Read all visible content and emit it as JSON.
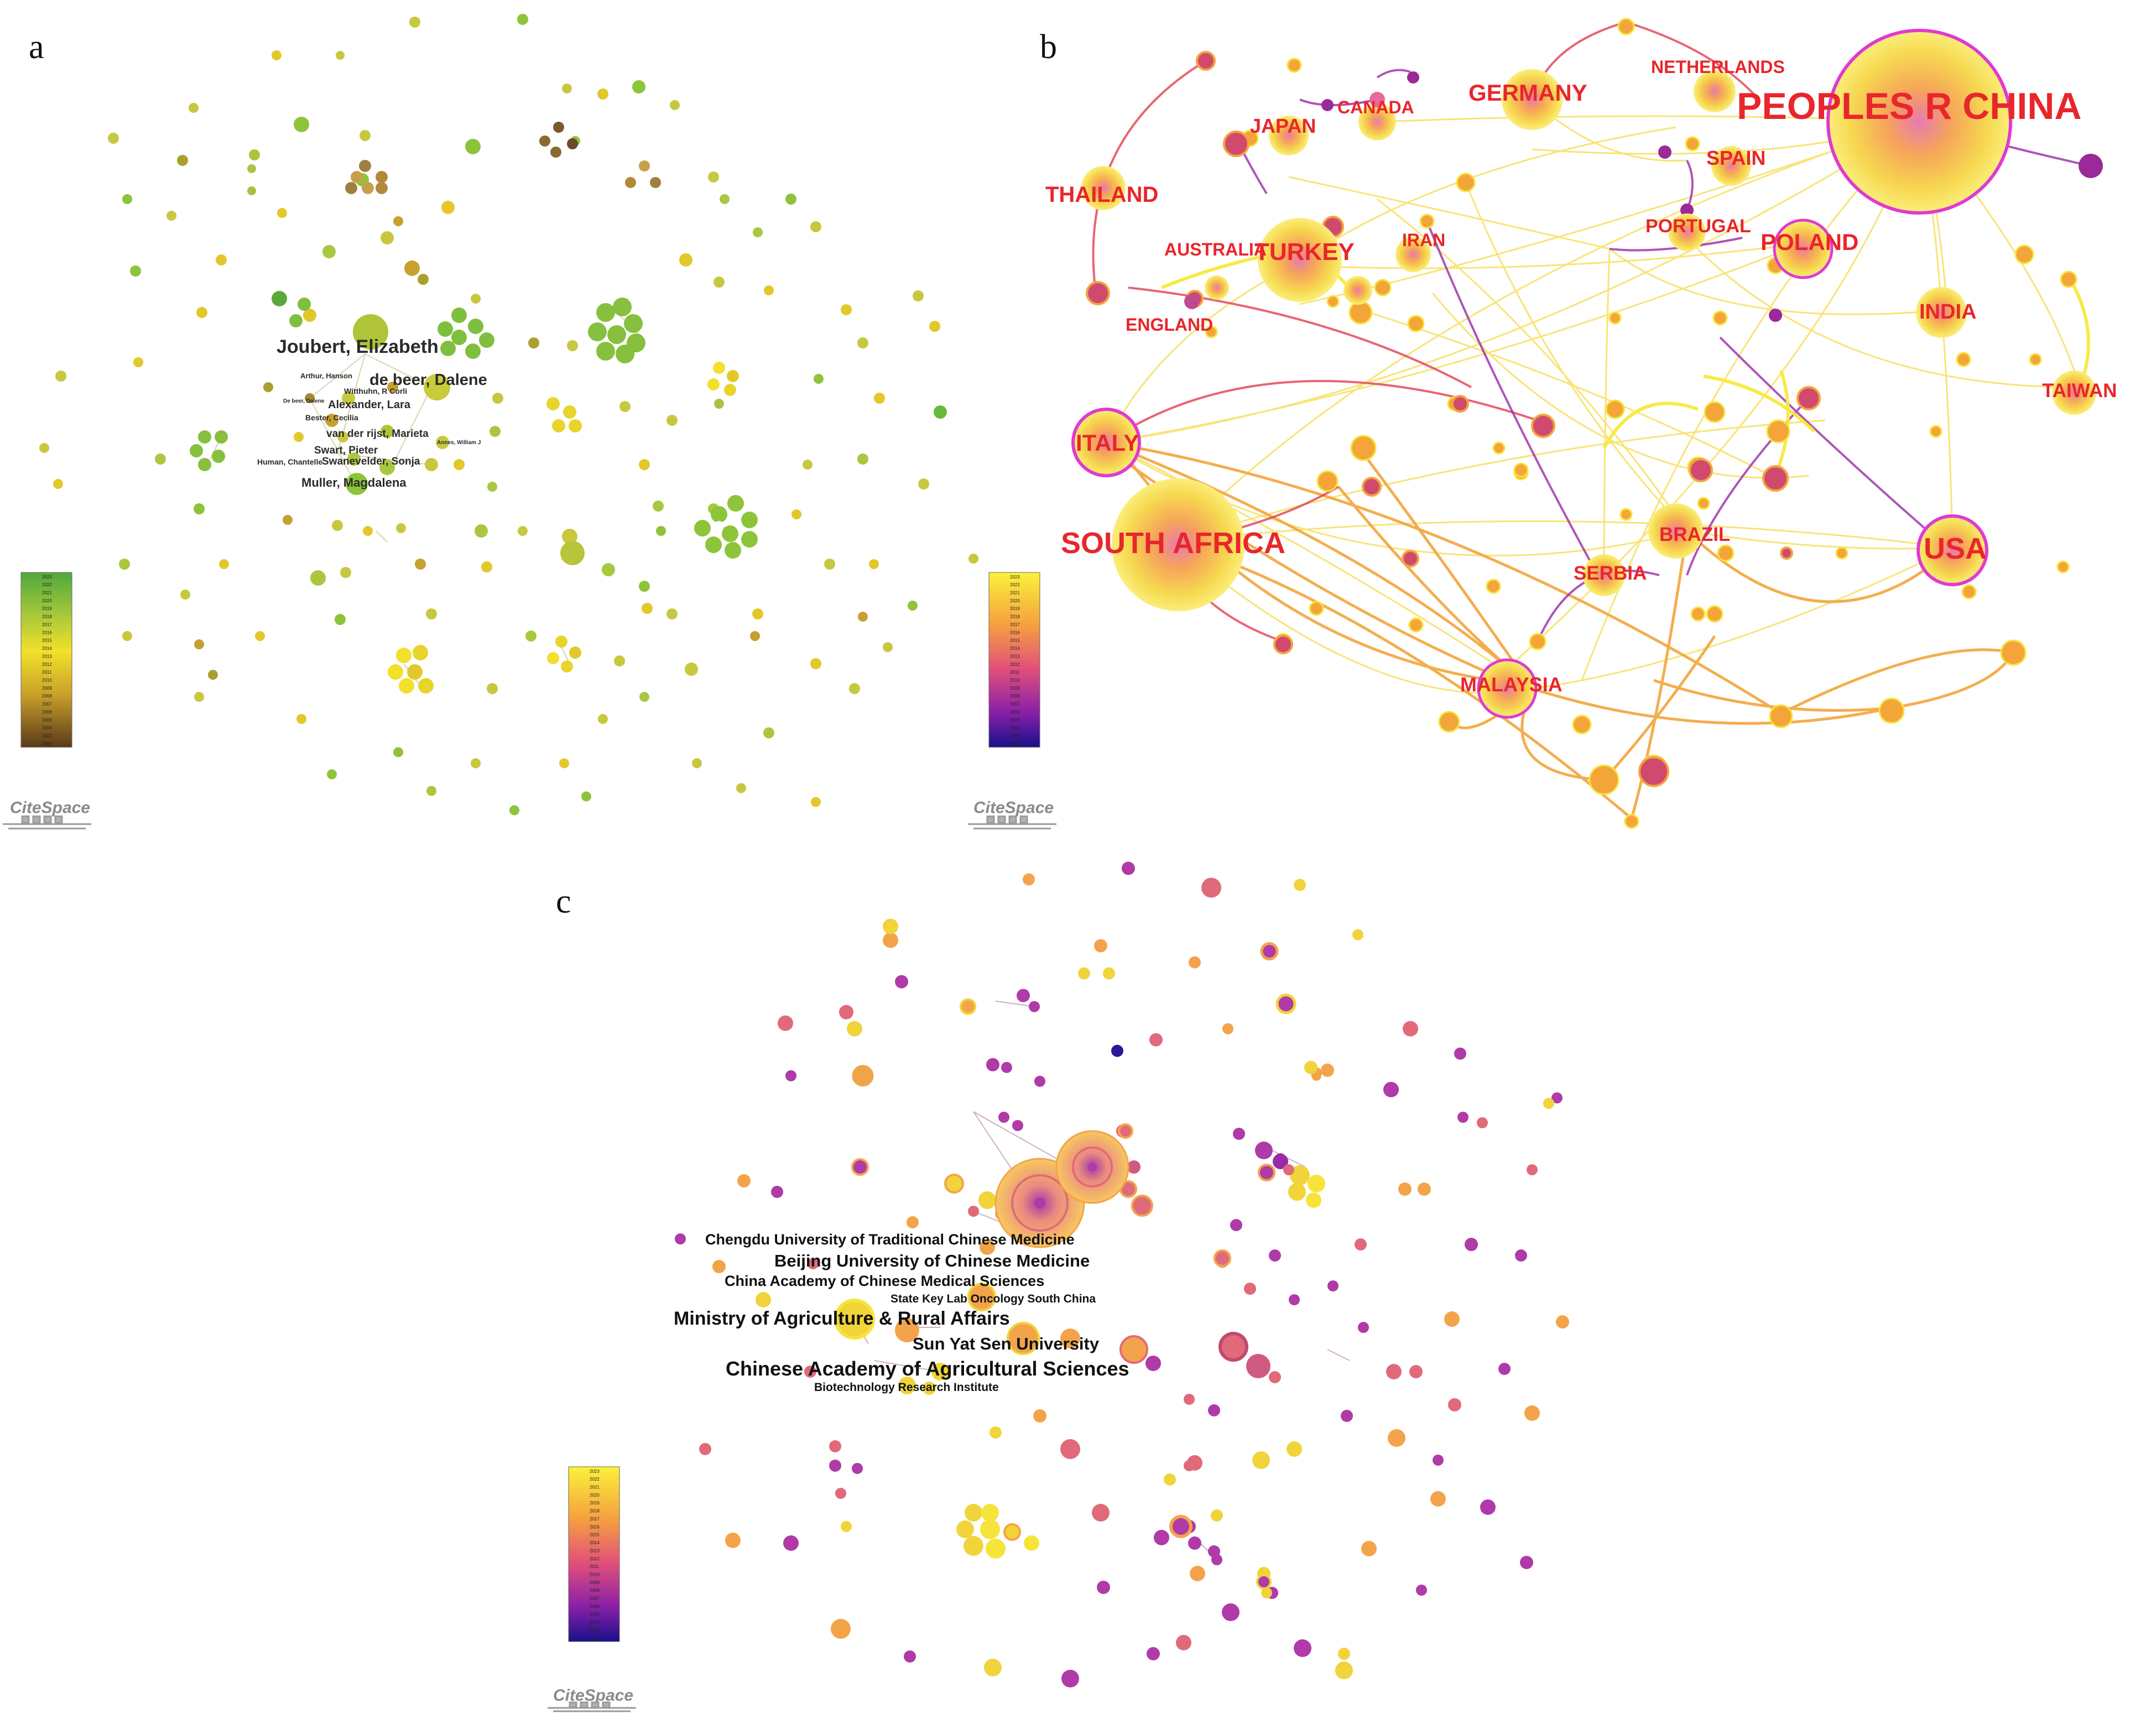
{
  "panels": [
    {
      "id": "a",
      "letter": "a"
    },
    {
      "id": "b",
      "letter": "b"
    },
    {
      "id": "c",
      "letter": "c"
    }
  ],
  "brand_text": "CiteSpace",
  "panel_a": {
    "legend_years": [
      "2023",
      "2022",
      "2021",
      "2020",
      "2019",
      "2018",
      "2017",
      "2016",
      "2015",
      "2014",
      "2013",
      "2012",
      "2011",
      "2010",
      "2009",
      "2008",
      "2007",
      "2006",
      "2005",
      "2004",
      "2003",
      "2002"
    ],
    "labels_large": [
      "Joubert, Elizabeth",
      "de beer, Dalene"
    ],
    "labels_medium": [
      "Alexander, Lara",
      "van der rijst, Marieta",
      "Swart, Pieter",
      "Swanevelder, Sonja",
      "Muller, Magdalena"
    ],
    "labels_small": [
      "Arthur, Hanson",
      "Witthuhn, R Corli",
      "De beer, Dalene",
      "Bester, Cecilia",
      "Human, Chantelle",
      "Annes, William J"
    ],
    "colors": {
      "green": "#7fbf3f",
      "olive": "#b7c43a",
      "yellow": "#f2e82a",
      "brown": "#8a6a2a",
      "tan": "#c8a84a"
    }
  },
  "panel_b": {
    "legend_years": [
      "2023",
      "2022",
      "2021",
      "2020",
      "2019",
      "2018",
      "2017",
      "2016",
      "2015",
      "2014",
      "2013",
      "2012",
      "2011",
      "2010",
      "2009",
      "2008",
      "2007",
      "2006",
      "2005",
      "2004",
      "2003",
      "2002"
    ],
    "countries": {
      "china": "PEOPLES R CHINA",
      "south_africa": "SOUTH AFRICA",
      "usa": "USA",
      "italy": "ITALY",
      "turkey": "TURKEY",
      "poland": "POLAND",
      "germany": "GERMANY",
      "india": "INDIA",
      "taiwan": "TAIWAN",
      "malaysia": "MALAYSIA",
      "brazil": "BRAZIL",
      "serbia": "SERBIA",
      "thailand": "THAILAND",
      "japan": "JAPAN",
      "canada": "CANADA",
      "netherlands": "NETHERLANDS",
      "spain": "SPAIN",
      "portugal": "PORTUGAL",
      "australia": "AUSTRALIA",
      "iran": "IRAN",
      "england": "ENGLAND"
    },
    "colors": {
      "label": "#e8262c",
      "ring": "#e83ad8",
      "yellow": "#f7e43a",
      "orange": "#f3a53a",
      "purple": "#8a2a9a"
    }
  },
  "panel_c": {
    "legend_years": [
      "2023",
      "2022",
      "2021",
      "2020",
      "2019",
      "2018",
      "2017",
      "2016",
      "2015",
      "2014",
      "2013",
      "2012",
      "2011",
      "2010",
      "2009",
      "2008",
      "2007",
      "2006",
      "2005",
      "2004",
      "2003",
      "2002"
    ],
    "institutions": {
      "chengdu": "Chengdu University of Traditional Chinese Medicine",
      "beijing": "Beijing University of Chinese Medicine",
      "cacms": "China Academy of Chinese Medical Sciences",
      "skl": "State Key Lab Oncology South China",
      "moa": "Ministry of Agriculture & Rural Affairs",
      "sysu": "Sun Yat Sen University",
      "caas": "Chinese Academy of Agricultural Sciences",
      "bri": "Biotechnology Research Institute"
    },
    "colors": {
      "yellow": "#f7e43a",
      "orange": "#f3a44a",
      "pink": "#e06a7a",
      "purple": "#b03aa8",
      "navy": "#2a1a9a"
    }
  }
}
